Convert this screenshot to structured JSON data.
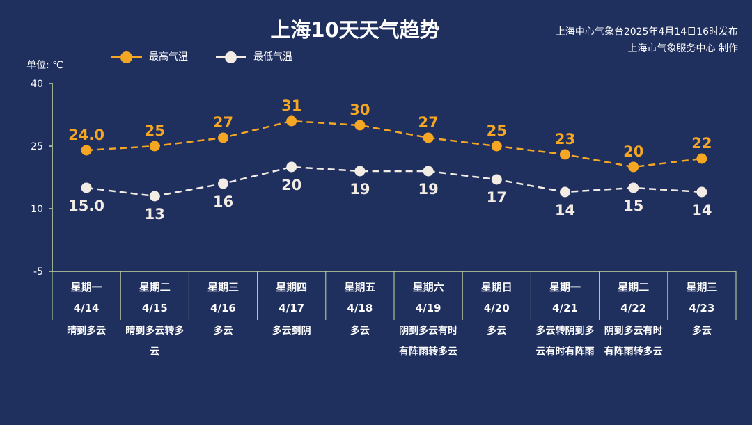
{
  "header": {
    "title": "上海10天天气趋势",
    "issuer_line1": "上海中心气象台2025年4月14日16时发布",
    "issuer_line2": "上海市气象服务中心 制作"
  },
  "colors": {
    "high": "#f5a623",
    "low": "#f2ece4",
    "axis": "#c8d8a0",
    "background": "#1f2f5e"
  },
  "chart_data": {
    "type": "line",
    "title": "上海10天天气趋势",
    "ylabel": "单位: ℃",
    "ylim": [
      -5,
      40
    ],
    "yticks": [
      40,
      25,
      10,
      -5
    ],
    "categories": [
      "星期一",
      "星期二",
      "星期三",
      "星期四",
      "星期五",
      "星期六",
      "星期日",
      "星期一",
      "星期二",
      "星期三"
    ],
    "dates": [
      "4/14",
      "4/15",
      "4/16",
      "4/17",
      "4/18",
      "4/19",
      "4/20",
      "4/21",
      "4/22",
      "4/23"
    ],
    "weather": [
      "晴到多云",
      "晴到多云转多云",
      "多云",
      "多云到阴",
      "多云",
      "阴到多云有时有阵雨转多云",
      "多云",
      "多云转阴到多云有时有阵雨",
      "阴到多云有时有阵雨转多云",
      "多云"
    ],
    "series": [
      {
        "name": "最高气温",
        "values": [
          24,
          25,
          27,
          31,
          30,
          27,
          25,
          23,
          20,
          22
        ],
        "labels": [
          "24.0",
          "25",
          "27",
          "31",
          "30",
          "27",
          "25",
          "23",
          "20",
          "22"
        ]
      },
      {
        "name": "最低气温",
        "values": [
          15,
          13,
          16,
          20,
          19,
          19,
          17,
          14,
          15,
          14
        ],
        "labels": [
          "15.0",
          "13",
          "16",
          "20",
          "19",
          "19",
          "17",
          "14",
          "15",
          "14"
        ]
      }
    ],
    "legend": "top-left",
    "grid": false
  }
}
